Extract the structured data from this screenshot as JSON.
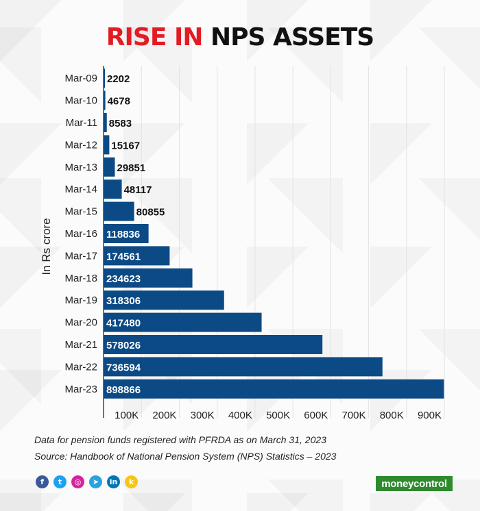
{
  "title": {
    "part1": "RISE IN",
    "part2": "NPS ASSETS"
  },
  "colors": {
    "accent": "#e31b23",
    "bar": "#0b4a85",
    "title_dark": "#111111",
    "logo_bg": "#2d8a2d"
  },
  "chart_data": {
    "type": "bar",
    "orientation": "horizontal",
    "categories": [
      "Mar-09",
      "Mar-10",
      "Mar-11",
      "Mar-12",
      "Mar-13",
      "Mar-14",
      "Mar-15",
      "Mar-16",
      "Mar-17",
      "Mar-18",
      "Mar-19",
      "Mar-20",
      "Mar-21",
      "Mar-22",
      "Mar-23"
    ],
    "values": [
      2202,
      4678,
      8583,
      15167,
      29851,
      48117,
      80855,
      118836,
      174561,
      234623,
      318306,
      417480,
      578026,
      736594,
      898866
    ],
    "ylabel": "In Rs crore",
    "xlabel": "",
    "xlim": [
      0,
      900000
    ],
    "xticks": [
      100000,
      200000,
      300000,
      400000,
      500000,
      600000,
      700000,
      800000,
      900000
    ],
    "xtick_labels": [
      "100K",
      "200K",
      "300K",
      "400K",
      "500K",
      "600K",
      "700K",
      "800K",
      "900K"
    ],
    "grid": true,
    "legend": "none"
  },
  "footnotes": {
    "line1": "Data for pension funds registered with PFRDA as on March 31, 2023",
    "line2": "Source: Handbook of National Pension System (NPS) Statistics – 2023"
  },
  "social_icons": [
    {
      "name": "facebook-icon",
      "glyph": "f",
      "color": "#3b5998"
    },
    {
      "name": "twitter-icon",
      "glyph": "t",
      "color": "#1da1f2"
    },
    {
      "name": "instagram-icon",
      "glyph": "◎",
      "color": "#d6249f"
    },
    {
      "name": "telegram-icon",
      "glyph": "➤",
      "color": "#2aa3dd"
    },
    {
      "name": "linkedin-icon",
      "glyph": "in",
      "color": "#0077b5"
    },
    {
      "name": "koo-icon",
      "glyph": "k",
      "color": "#f5c518"
    }
  ],
  "logo": {
    "text": "moneycontrol"
  }
}
